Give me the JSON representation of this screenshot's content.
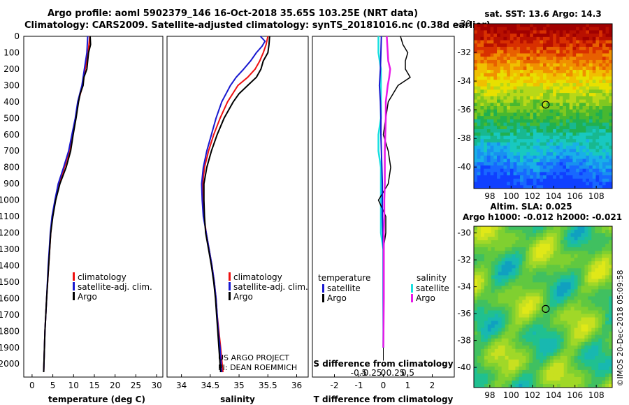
{
  "header": {
    "title_line1": "Argo profile: aoml 5902379_146 16-Oct-2018 35.65S 103.25E (NRT data)",
    "title_line2": "Climatology: CARS2009. Satellite-adjusted climatology: synTS_20181016.nc (0.38d earlier)"
  },
  "colors": {
    "climatology": "#ee1111",
    "satellite": "#1818d0",
    "argo": "#000000",
    "t_sat": "#18e0e0",
    "s_argo": "#e818e8"
  },
  "chart_data": [
    {
      "type": "line",
      "id": "temperature",
      "xlabel": "temperature (deg C)",
      "ylabel": "",
      "xlim": [
        -2,
        31.5
      ],
      "ylim": [
        2080,
        0
      ],
      "xticks": [
        "0",
        "5",
        "10",
        "15",
        "20",
        "25",
        "30"
      ],
      "yticks": [
        "0",
        "100",
        "200",
        "300",
        "400",
        "500",
        "600",
        "700",
        "800",
        "900",
        "1000",
        "1100",
        "1200",
        "1300",
        "1400",
        "1500",
        "1600",
        "1700",
        "1800",
        "1900",
        "2000"
      ],
      "legend": [
        "climatology",
        "satellite-adj. clim.",
        "Argo"
      ],
      "legend_position": "lower-right",
      "series": [
        {
          "name": "climatology",
          "depth": [
            0,
            100,
            200,
            300,
            400,
            500,
            600,
            700,
            800,
            900,
            1000,
            1100,
            1200,
            1400,
            1600,
            1800,
            2050
          ],
          "values": [
            13.9,
            13.5,
            12.8,
            12.2,
            11.1,
            10.5,
            9.8,
            9.0,
            7.8,
            6.5,
            5.6,
            4.9,
            4.5,
            4.0,
            3.5,
            3.1,
            2.8
          ]
        },
        {
          "name": "satellite-adj. clim.",
          "depth": [
            0,
            100,
            200,
            300,
            400,
            500,
            600,
            700,
            800,
            900,
            1000,
            1100,
            1200,
            1400,
            1600,
            1800,
            2050
          ],
          "values": [
            13.4,
            13.2,
            12.6,
            12.0,
            11.0,
            10.4,
            9.6,
            8.8,
            7.6,
            6.3,
            5.5,
            4.8,
            4.4,
            3.9,
            3.5,
            3.1,
            2.8
          ]
        },
        {
          "name": "Argo",
          "depth": [
            0,
            50,
            100,
            150,
            200,
            250,
            300,
            350,
            400,
            500,
            600,
            700,
            800,
            900,
            1000,
            1100,
            1200,
            1400,
            1600,
            1800,
            2050
          ],
          "values": [
            14.0,
            14.1,
            13.6,
            13.4,
            13.2,
            12.5,
            12.3,
            11.6,
            11.2,
            10.6,
            9.9,
            9.3,
            8.2,
            6.7,
            5.7,
            5.0,
            4.5,
            4.0,
            3.5,
            3.1,
            2.8
          ]
        }
      ]
    },
    {
      "type": "line",
      "id": "salinity",
      "xlabel": "salinity",
      "xlim": [
        33.75,
        36.2
      ],
      "ylim": [
        2080,
        0
      ],
      "xticks": [
        "34",
        "34.5",
        "35",
        "35.5",
        "36"
      ],
      "legend": [
        "climatology",
        "satellite-adj. clim.",
        "Argo"
      ],
      "legend_position": "lower-right",
      "annotations": [
        "US ARGO PROJECT",
        "PI: DEAN ROEMMICH"
      ],
      "series": [
        {
          "name": "climatology",
          "depth": [
            0,
            50,
            100,
            150,
            200,
            250,
            300,
            400,
            500,
            600,
            700,
            800,
            900,
            1000,
            1100,
            1200,
            1300,
            1400,
            1500,
            1600,
            1700,
            1800,
            1900,
            2050
          ],
          "values": [
            35.5,
            35.47,
            35.42,
            35.36,
            35.28,
            35.15,
            34.98,
            34.8,
            34.67,
            34.56,
            34.47,
            34.4,
            34.37,
            34.37,
            34.39,
            34.43,
            34.48,
            34.53,
            34.57,
            34.6,
            34.62,
            34.65,
            34.68,
            34.72
          ]
        },
        {
          "name": "satellite-adj. clim.",
          "depth": [
            0,
            30,
            60,
            100,
            150,
            200,
            250,
            300,
            400,
            500,
            600,
            700,
            800,
            900,
            1000,
            1100,
            1200,
            1300,
            1400,
            1500,
            1600,
            1700,
            1800,
            1900,
            2050
          ],
          "values": [
            35.37,
            35.45,
            35.4,
            35.3,
            35.2,
            35.08,
            34.95,
            34.85,
            34.7,
            34.6,
            34.52,
            34.44,
            34.38,
            34.35,
            34.36,
            34.38,
            34.43,
            34.48,
            34.53,
            34.57,
            34.6,
            34.62,
            34.64,
            34.67,
            34.7
          ]
        },
        {
          "name": "Argo",
          "depth": [
            0,
            50,
            100,
            150,
            200,
            250,
            300,
            350,
            400,
            500,
            600,
            700,
            800,
            900,
            1000,
            1100,
            1200,
            1300,
            1400,
            1500,
            1600,
            1700,
            1800,
            1900,
            2050
          ],
          "values": [
            35.53,
            35.52,
            35.5,
            35.42,
            35.38,
            35.3,
            35.15,
            35.0,
            34.9,
            34.74,
            34.62,
            34.52,
            34.44,
            34.39,
            34.39,
            34.4,
            34.42,
            34.47,
            34.52,
            34.56,
            34.59,
            34.61,
            34.63,
            34.65,
            34.68
          ]
        }
      ]
    },
    {
      "type": "line",
      "id": "difference",
      "xlabel": "T difference from climatology",
      "x2label": "S difference from climatology",
      "xlim": [
        -2.9,
        2.9
      ],
      "ylim": [
        2080,
        0
      ],
      "xticks": [
        "-2",
        "-1",
        "0",
        "1",
        "2"
      ],
      "x2ticks": [
        "-0.5",
        "-0.25",
        "0",
        "0.25",
        "0.5"
      ],
      "legend_temperature": {
        "title": "temperature",
        "items": [
          "satellite",
          "Argo"
        ]
      },
      "legend_salinity": {
        "title": "salinity",
        "items": [
          "satellite",
          "Argo"
        ]
      },
      "series": [
        {
          "name": "temperature satellite",
          "depth": [
            0,
            100,
            200,
            300,
            400,
            500,
            600,
            700,
            800,
            900,
            1000,
            1100,
            1200,
            1300,
            1400,
            1600,
            1900
          ],
          "values": [
            -0.2,
            -0.2,
            -0.1,
            -0.1,
            -0.1,
            -0.1,
            -0.2,
            -0.2,
            -0.1,
            -0.1,
            -0.1,
            -0.1,
            -0.1,
            0.0,
            0.0,
            0.0,
            0.0
          ]
        },
        {
          "name": "temperature Argo",
          "depth": [
            0,
            50,
            100,
            150,
            200,
            250,
            300,
            350,
            400,
            500,
            600,
            700,
            800,
            900,
            1000,
            1100,
            1200,
            1300,
            1400,
            1600,
            1900
          ],
          "values": [
            0.7,
            0.8,
            1.0,
            0.9,
            0.9,
            1.1,
            0.6,
            0.4,
            0.2,
            0.1,
            0.0,
            0.2,
            0.3,
            0.2,
            -0.2,
            0.1,
            0.1,
            0.0,
            0.0,
            0.0,
            0.0
          ]
        },
        {
          "name": "salinity satellite",
          "depth": [
            0,
            100,
            200,
            300,
            400,
            500,
            600,
            700,
            800,
            900,
            1000,
            1100,
            1200,
            1300,
            1400,
            1600,
            1900
          ],
          "values": [
            -0.04,
            -0.05,
            -0.06,
            -0.08,
            -0.06,
            -0.05,
            -0.05,
            -0.04,
            -0.03,
            -0.02,
            -0.02,
            -0.02,
            -0.01,
            0.0,
            0.0,
            0.0,
            0.0
          ]
        },
        {
          "name": "salinity Argo",
          "depth": [
            0,
            50,
            100,
            150,
            200,
            250,
            300,
            350,
            400,
            500,
            600,
            700,
            800,
            900,
            1000,
            1100,
            1200,
            1300,
            1400,
            1600,
            1900
          ],
          "values": [
            0.07,
            0.08,
            0.09,
            0.1,
            0.14,
            0.12,
            0.09,
            0.07,
            0.05,
            0.05,
            0.04,
            0.03,
            0.03,
            0.03,
            0.02,
            0.02,
            0.01,
            0.01,
            0.01,
            0.01,
            0.0
          ]
        }
      ]
    },
    {
      "type": "heatmap",
      "id": "sst_map",
      "title": "sat. SST: 13.6 Argo: 14.3",
      "xticks": [
        "98",
        "100",
        "102",
        "104",
        "106",
        "108"
      ],
      "yticks": [
        "-30",
        "-32",
        "-34",
        "-36",
        "-38",
        "-40"
      ],
      "xlim": [
        96.5,
        109.5
      ],
      "ylim": [
        -41.5,
        -30
      ],
      "marker": {
        "lon": 103.25,
        "lat": -35.65
      }
    },
    {
      "type": "heatmap",
      "id": "sla_map",
      "title_line1": "Altim. SLA: 0.025",
      "title_line2": "Argo h1000: -0.012 h2000: -0.021",
      "xticks": [
        "98",
        "100",
        "102",
        "104",
        "106",
        "108"
      ],
      "yticks": [
        "-30",
        "-32",
        "-34",
        "-36",
        "-38",
        "-40"
      ],
      "xlim": [
        96.5,
        109.5
      ],
      "ylim": [
        -41.5,
        -29.5
      ],
      "marker": {
        "lon": 103.25,
        "lat": -35.65
      }
    }
  ],
  "footer": {
    "stamp": "©IMOS 20-Dec-2018 05:09:58"
  }
}
